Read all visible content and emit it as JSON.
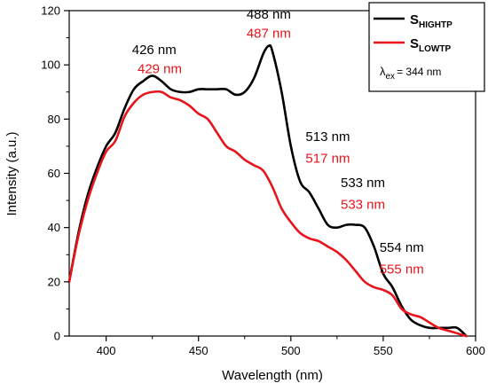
{
  "chart_data": {
    "type": "line",
    "xlabel": "Wavelength (nm)",
    "ylabel": "Intensity (a.u.)",
    "xlim": [
      380,
      600
    ],
    "ylim": [
      0,
      120
    ],
    "xticks": [
      400,
      450,
      500,
      550,
      600
    ],
    "yticks": [
      0,
      20,
      40,
      60,
      80,
      100,
      120
    ],
    "grid": false,
    "legend_placement": "top-right",
    "series": [
      {
        "legend_main": "S",
        "legend_sub": "HIGHTP",
        "color": "#000000",
        "x": [
          380,
          385,
          390,
          395,
          400,
          405,
          410,
          415,
          420,
          425,
          430,
          435,
          440,
          445,
          450,
          455,
          460,
          465,
          470,
          475,
          480,
          485,
          488,
          490,
          495,
          500,
          505,
          510,
          515,
          520,
          525,
          530,
          535,
          540,
          545,
          550,
          555,
          560,
          565,
          570,
          575,
          580,
          585,
          590,
          595
        ],
        "y": [
          20,
          38,
          52,
          62,
          70,
          75,
          84,
          91,
          94,
          96,
          94,
          91,
          90,
          90,
          91,
          91,
          91,
          91,
          89,
          90,
          95,
          104,
          107,
          105,
          90,
          70,
          57,
          53,
          47,
          41,
          40,
          41,
          41,
          40,
          33,
          23,
          18,
          11,
          6,
          4,
          3,
          3,
          3,
          3,
          0
        ]
      },
      {
        "legend_main": "S",
        "legend_sub": "LOWTP",
        "color": "#e8141b",
        "x": [
          380,
          385,
          390,
          395,
          400,
          405,
          410,
          415,
          420,
          425,
          430,
          435,
          440,
          445,
          450,
          455,
          460,
          465,
          470,
          475,
          480,
          485,
          490,
          495,
          500,
          505,
          510,
          515,
          520,
          525,
          530,
          535,
          540,
          545,
          550,
          555,
          560,
          565,
          570,
          575,
          580,
          585,
          590,
          595
        ],
        "y": [
          20,
          37,
          50,
          60,
          68,
          72,
          81,
          86,
          89,
          90,
          90,
          88,
          87,
          85,
          82,
          80,
          75,
          70,
          68,
          65,
          63,
          61,
          55,
          47,
          42,
          38,
          36,
          35,
          33,
          31,
          28,
          24,
          20,
          18,
          17,
          15,
          10,
          8,
          7,
          5,
          3,
          2,
          1,
          0
        ]
      }
    ],
    "legend_note_symbol": "λ",
    "legend_note_sub": "ex",
    "legend_note_text": "= 344 nm",
    "annotations": [
      {
        "text": "426 nm",
        "color": "#000000",
        "x": 426,
        "y": 104
      },
      {
        "text": "429 nm",
        "color": "#e8141b",
        "x": 429,
        "y": 97
      },
      {
        "text": "488 nm",
        "color": "#000000",
        "x": 488,
        "y": 117
      },
      {
        "text": "487 nm",
        "color": "#e8141b",
        "x": 488,
        "y": 110
      },
      {
        "text": "513 nm",
        "color": "#000000",
        "x": 520,
        "y": 72
      },
      {
        "text": "517 nm",
        "color": "#e8141b",
        "x": 520,
        "y": 64
      },
      {
        "text": "533 nm",
        "color": "#000000",
        "x": 539,
        "y": 55
      },
      {
        "text": "533 nm",
        "color": "#e8141b",
        "x": 539,
        "y": 47
      },
      {
        "text": "554 nm",
        "color": "#000000",
        "x": 560,
        "y": 31
      },
      {
        "text": "555 nm",
        "color": "#e8141b",
        "x": 560,
        "y": 23
      }
    ]
  }
}
